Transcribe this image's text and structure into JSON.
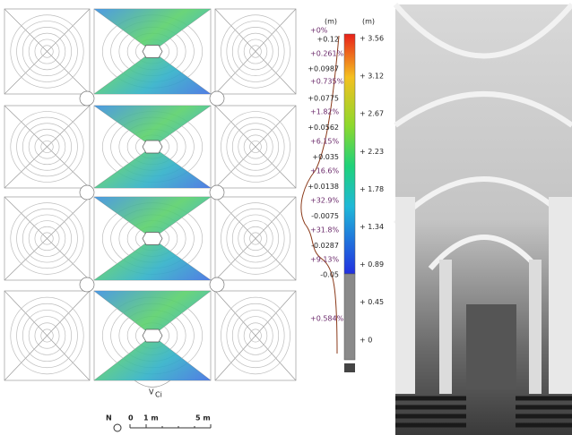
{
  "plan": {
    "label": "V",
    "label_sub": "Ci"
  },
  "scale_bar": {
    "north": "N",
    "labels": [
      "0",
      "1 m",
      "5 m"
    ]
  },
  "colorbar": {
    "unit_left": "(m)",
    "unit_right": "(m)",
    "deviation_labels": [
      "+0.12",
      "+0.0987",
      "+0.0775",
      "+0.0562",
      "+0.035",
      "+0.0138",
      "-0.0075",
      "-0.0287",
      "-0.05"
    ],
    "height_labels": [
      "+ 3.56",
      "+ 3.12",
      "+ 2.67",
      "+ 2.23",
      "+ 1.78",
      "+ 1.34",
      "+ 0.89",
      "+ 0.45",
      "+ 0"
    ]
  },
  "histogram": {
    "percent_labels": [
      "+0%",
      "+0.261%",
      "+0.735%",
      "+1.82%",
      "+6.15%",
      "+16.6%",
      "+32.9%",
      "+31.8%",
      "+9.13%",
      "+0.584%"
    ]
  }
}
